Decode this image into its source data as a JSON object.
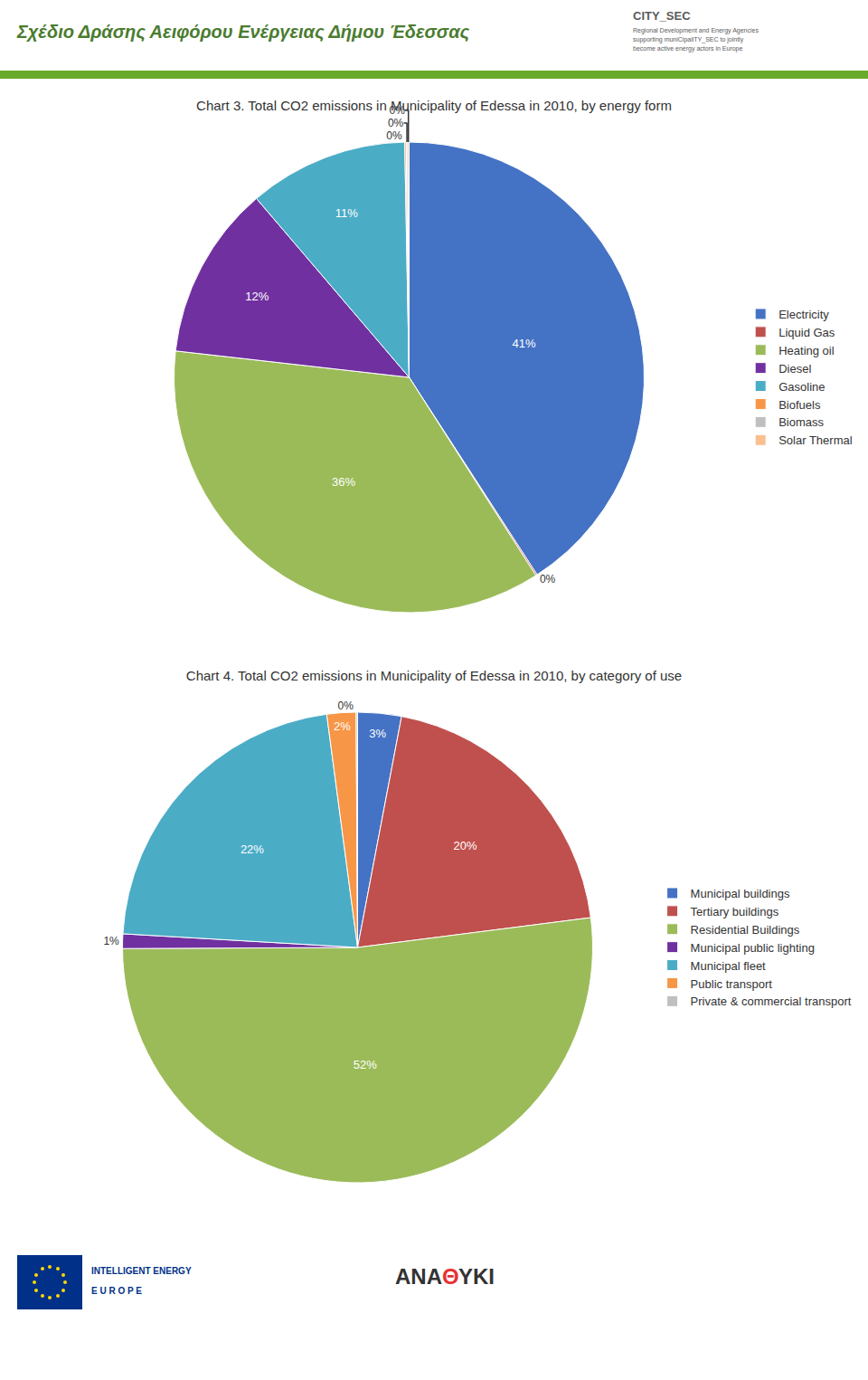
{
  "chart_data": [
    {
      "type": "pie",
      "title": "Chart 3. Total CO2 emissions in Municipality of Edessa in 2010, by energy form",
      "categories": [
        "Electricity",
        "Liquid Gas",
        "Heating oil",
        "Diesel",
        "Gasoline",
        "Biofuels",
        "Biomass",
        "Solar Thermal"
      ],
      "values": [
        41,
        0.1,
        36,
        12,
        11,
        0.1,
        0.1,
        0.1
      ],
      "value_labels": [
        "41%",
        "0%",
        "36%",
        "12%",
        "11%",
        "0%",
        "0%",
        "0%"
      ],
      "colors": [
        "#4472c4",
        "#c0504d",
        "#9bbb59",
        "#7030a0",
        "#4bacc6",
        "#f79646",
        "#bfbfbf",
        "#fabf8f"
      ],
      "data_labels": true,
      "legend": "right",
      "annotations": [
        "Σχέδιο Δράσης Αειφόρου Ενέργειας Δήμου Έδεσσας",
        "CITY_SEC",
        "Regional Development and Energy Agencies\nsupporting muniCipaliTY_SEC to jointly\nbecome active energy actors in Europe"
      ]
    },
    {
      "type": "pie",
      "title": "Chart 4. Total CO2 emissions in Municipality of Edessa in 2010, by category of use",
      "categories": [
        "Municipal buildings",
        "Tertiary buildings",
        "Residential Buildings",
        "Municipal public lighting",
        "Municipal fleet",
        "Public transport",
        "Private & commercial transport"
      ],
      "values": [
        3,
        20,
        52,
        1,
        22,
        2,
        0.1
      ],
      "value_labels": [
        "3%",
        "20%",
        "52%",
        "1%",
        "22%",
        "2%",
        "0%"
      ],
      "colors": [
        "#4472c4",
        "#c0504d",
        "#9bbb59",
        "#7030a0",
        "#4bacc6",
        "#f79646",
        "#bfbfbf"
      ],
      "data_labels": true,
      "legend": "right",
      "annotations": [
        "INTELLIGENT ENERGY",
        "E U R O P E",
        "ANA",
        "Θ",
        "ΥΚΙ"
      ]
    }
  ]
}
